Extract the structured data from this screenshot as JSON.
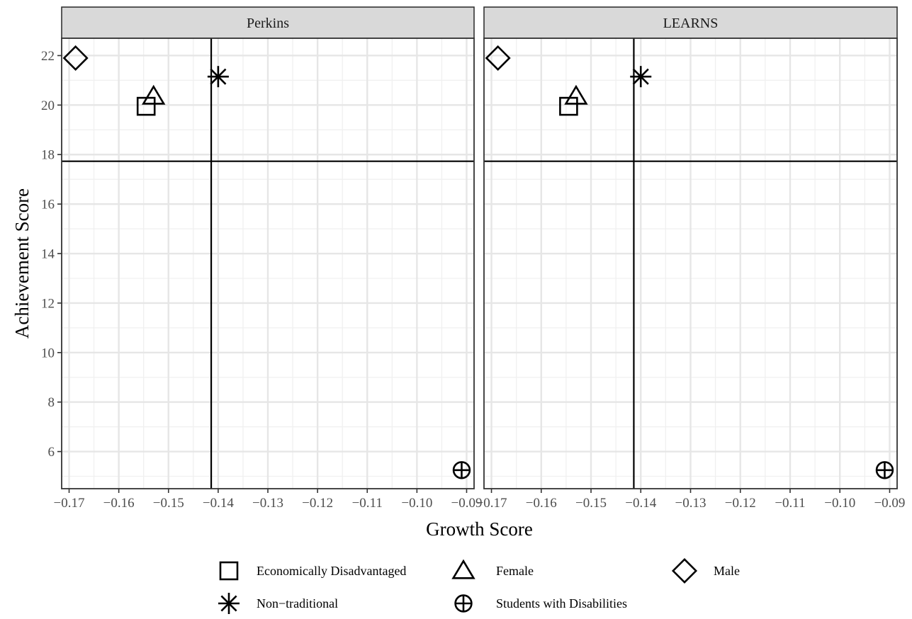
{
  "chart_data": {
    "type": "scatter",
    "xlabel": "Growth Score",
    "ylabel": "Achievement Score",
    "xlim": [
      -0.1715,
      -0.0885
    ],
    "ylim": [
      4.5,
      22.7
    ],
    "x_ticks": [
      -0.17,
      -0.16,
      -0.15,
      -0.14,
      -0.13,
      -0.12,
      -0.11,
      -0.1,
      -0.09
    ],
    "x_tick_labels": [
      "−0.17",
      "−0.16",
      "−0.15",
      "−0.14",
      "−0.13",
      "−0.12",
      "−0.11",
      "−0.10",
      "−0.09"
    ],
    "y_ticks": [
      6,
      8,
      10,
      12,
      14,
      16,
      18,
      20,
      22
    ],
    "y_tick_labels": [
      "6",
      "8",
      "10",
      "12",
      "14",
      "16",
      "18",
      "20",
      "22"
    ],
    "grid": true,
    "legend_position": "bottom",
    "reference_lines": {
      "vline_x": -0.1414,
      "hline_y": 17.73
    },
    "series": [
      {
        "name": "Economically Disadvantaged",
        "shape": "square"
      },
      {
        "name": "Female",
        "shape": "triangle"
      },
      {
        "name": "Male",
        "shape": "diamond"
      },
      {
        "name": "Non−traditional",
        "shape": "asterisk"
      },
      {
        "name": "Students with Disabilities",
        "shape": "circle-plus"
      }
    ],
    "panels": [
      {
        "title": "Perkins",
        "points": [
          {
            "series": "Male",
            "x": -0.1687,
            "y": 21.9
          },
          {
            "series": "Female",
            "x": -0.153,
            "y": 20.35
          },
          {
            "series": "Economically Disadvantaged",
            "x": -0.1545,
            "y": 19.95
          },
          {
            "series": "Non−traditional",
            "x": -0.14,
            "y": 21.15
          },
          {
            "series": "Students with Disabilities",
            "x": -0.091,
            "y": 5.25
          }
        ]
      },
      {
        "title": "LEARNS",
        "points": [
          {
            "series": "Male",
            "x": -0.1687,
            "y": 21.9
          },
          {
            "series": "Female",
            "x": -0.153,
            "y": 20.35
          },
          {
            "series": "Economically Disadvantaged",
            "x": -0.1545,
            "y": 19.95
          },
          {
            "series": "Non−traditional",
            "x": -0.14,
            "y": 21.15
          },
          {
            "series": "Students with Disabilities",
            "x": -0.091,
            "y": 5.25
          }
        ]
      }
    ]
  }
}
